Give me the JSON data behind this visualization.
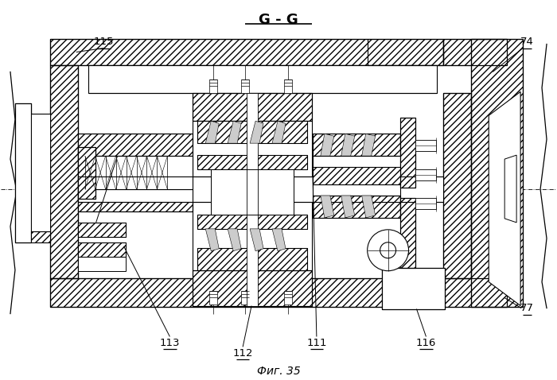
{
  "title": "G - G",
  "caption": "Фиг. 35",
  "bg": "#ffffff",
  "lc": "#000000",
  "figsize": [
    7.0,
    4.78
  ],
  "dpi": 100
}
